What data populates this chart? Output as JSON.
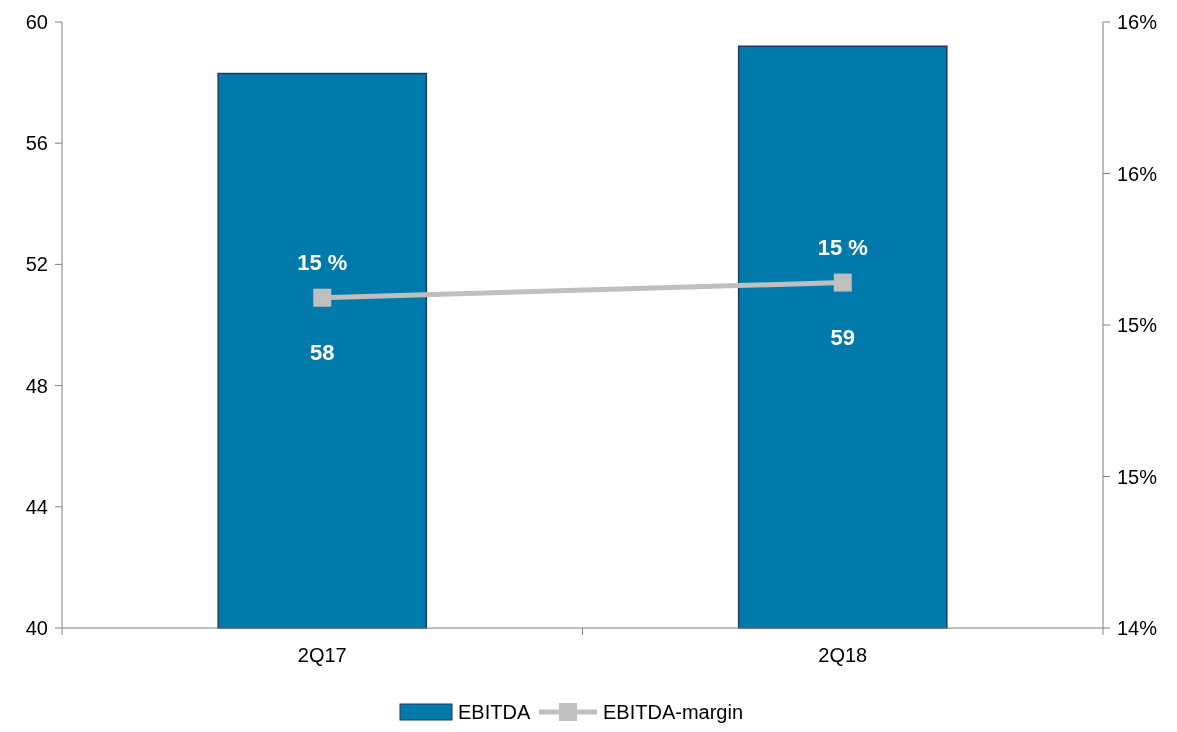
{
  "chart_data": {
    "type": "bar",
    "categories": [
      "2Q17",
      "2Q18"
    ],
    "series": [
      {
        "name": "EBITDA",
        "color": "#007aaa",
        "values": [
          58.3,
          59.2
        ],
        "value_labels": [
          "58",
          "59"
        ]
      },
      {
        "name": "EBITDA-margin",
        "type": "line",
        "axis": "y2",
        "color": "#bfbfbf",
        "values": [
          15.09,
          15.14
        ],
        "value_labels": [
          "15 %",
          "15 %"
        ],
        "marker": "square"
      }
    ],
    "ylim": [
      40,
      60
    ],
    "yticks": [
      40,
      44,
      48,
      52,
      56,
      60
    ],
    "y2lim": [
      14,
      16
    ],
    "y2ticks": [
      {
        "value": 14,
        "label": "14%"
      },
      {
        "value": 14.5,
        "label": "15%"
      },
      {
        "value": 15,
        "label": "15%"
      },
      {
        "value": 15.5,
        "label": "16%"
      },
      {
        "value": 16,
        "label": "16%"
      }
    ],
    "grid": false,
    "legend": "bottom"
  }
}
